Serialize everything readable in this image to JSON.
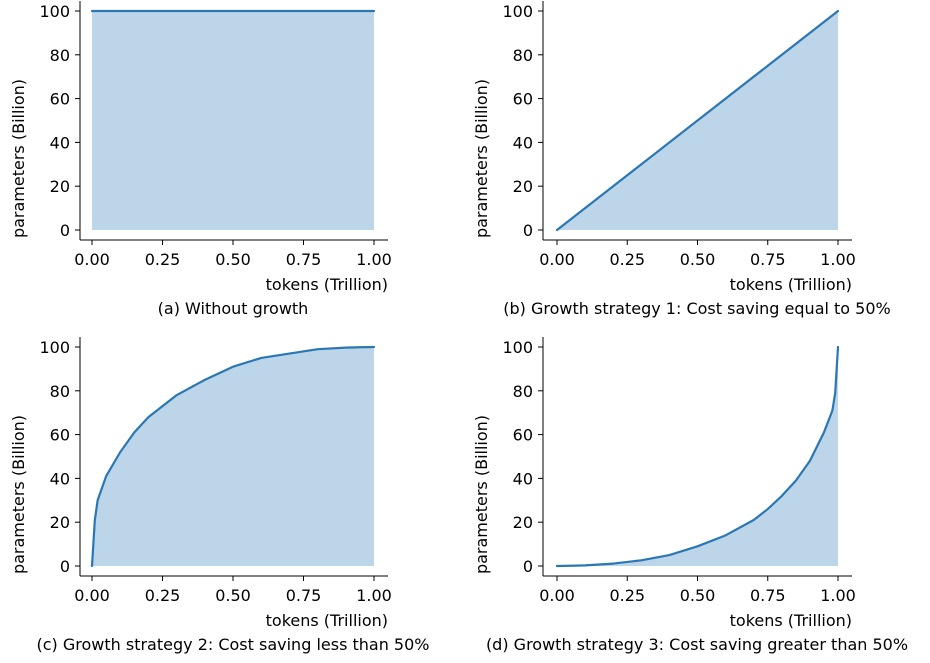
{
  "charts": [
    {
      "caption": "(a) Without growth",
      "chart_data": {
        "type": "area",
        "xlabel": "tokens (Trillion)",
        "ylabel": "parameters (Billion)",
        "xlim": [
          0,
          1
        ],
        "ylim": [
          0,
          100
        ],
        "xticks": [
          "0.00",
          "0.25",
          "0.50",
          "0.75",
          "1.00"
        ],
        "yticks": [
          "0",
          "20",
          "40",
          "60",
          "80",
          "100"
        ],
        "x": [
          0,
          0.25,
          0.5,
          0.75,
          1.0
        ],
        "y": [
          100,
          100,
          100,
          100,
          100
        ],
        "line_color": "#2a77b4",
        "fill_color": "#bcd5e8",
        "grid": false
      }
    },
    {
      "caption": "(b) Growth strategy 1: Cost saving equal to 50%",
      "chart_data": {
        "type": "area",
        "xlabel": "tokens (Trillion)",
        "ylabel": "parameters (Billion)",
        "xlim": [
          0,
          1
        ],
        "ylim": [
          0,
          100
        ],
        "xticks": [
          "0.00",
          "0.25",
          "0.50",
          "0.75",
          "1.00"
        ],
        "yticks": [
          "0",
          "20",
          "40",
          "60",
          "80",
          "100"
        ],
        "x": [
          0,
          0.25,
          0.5,
          0.75,
          1.0
        ],
        "y": [
          0,
          25,
          50,
          75,
          100
        ],
        "line_color": "#2a77b4",
        "fill_color": "#bcd5e8",
        "grid": false
      }
    },
    {
      "caption": "(c) Growth strategy 2: Cost saving less than 50%",
      "chart_data": {
        "type": "area",
        "xlabel": "tokens (Trillion)",
        "ylabel": "parameters (Billion)",
        "xlim": [
          0,
          1
        ],
        "ylim": [
          0,
          100
        ],
        "xticks": [
          "0.00",
          "0.25",
          "0.50",
          "0.75",
          "1.00"
        ],
        "yticks": [
          "0",
          "20",
          "40",
          "60",
          "80",
          "100"
        ],
        "x": [
          0,
          0.01,
          0.02,
          0.05,
          0.1,
          0.15,
          0.2,
          0.25,
          0.3,
          0.4,
          0.5,
          0.6,
          0.7,
          0.8,
          0.9,
          0.95,
          1.0
        ],
        "y": [
          0,
          21,
          30,
          41,
          52,
          61,
          68,
          73,
          78,
          85,
          91,
          95,
          97,
          99,
          99.7,
          99.9,
          100
        ],
        "line_color": "#2a77b4",
        "fill_color": "#bcd5e8",
        "grid": false
      }
    },
    {
      "caption": "(d) Growth strategy 3: Cost saving greater than 50%",
      "chart_data": {
        "type": "area",
        "xlabel": "tokens (Trillion)",
        "ylabel": "parameters (Billion)",
        "xlim": [
          0,
          1
        ],
        "ylim": [
          0,
          100
        ],
        "xticks": [
          "0.00",
          "0.25",
          "0.50",
          "0.75",
          "1.00"
        ],
        "yticks": [
          "0",
          "20",
          "40",
          "60",
          "80",
          "100"
        ],
        "x": [
          0,
          0.05,
          0.1,
          0.2,
          0.3,
          0.4,
          0.5,
          0.6,
          0.7,
          0.75,
          0.8,
          0.85,
          0.9,
          0.95,
          0.98,
          0.99,
          1.0
        ],
        "y": [
          0,
          0.1,
          0.3,
          1.1,
          2.6,
          5,
          9,
          14,
          21,
          26,
          32,
          39,
          48,
          61,
          71,
          79,
          100
        ],
        "line_color": "#2a77b4",
        "fill_color": "#bcd5e8",
        "grid": false
      }
    }
  ]
}
